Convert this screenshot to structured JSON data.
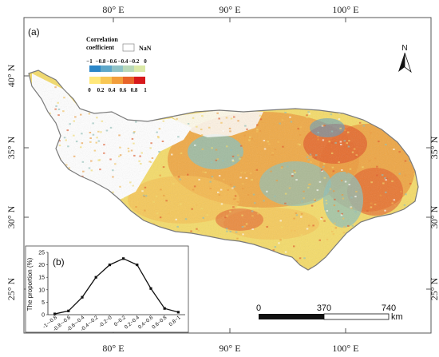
{
  "panel_a_label": "(a)",
  "panel_b_label": "(b)",
  "lon_labels_top": [
    "80° E",
    "90° E",
    "100° E"
  ],
  "lon_labels_bottom": [
    "80° E",
    "90° E",
    "100° E"
  ],
  "lat_labels": [
    "40° N",
    "35° N",
    "30° N",
    "25° N"
  ],
  "lat_labels_right": [
    "35° N",
    "30° N",
    "25° N"
  ],
  "legend": {
    "title_line1": "Correlation",
    "title_line2": "coefficient",
    "nan_label": "NaN",
    "neg_ticks": [
      "−1",
      "−0.8",
      "−0.6",
      "−0.4",
      "−0.2",
      "0"
    ],
    "pos_ticks": [
      "0",
      "0.2",
      "0.4",
      "0.6",
      "0.8",
      "1"
    ],
    "neg_colors": [
      "#2a86c8",
      "#5ea7c9",
      "#8fc2c6",
      "#b9d8b8",
      "#dbe9a8"
    ],
    "pos_colors": [
      "#ffe87a",
      "#f8c754",
      "#f29e3b",
      "#e8642a",
      "#d7191c"
    ]
  },
  "north_arrow_label": "N",
  "scalebar": {
    "ticks": [
      "0",
      "370",
      "740"
    ],
    "unit": "km"
  },
  "map_colors": {
    "yellow": "#f5dc6a",
    "orange": "#ee9a3c",
    "red_orange": "#e2592a",
    "light_orange": "#f6c055",
    "teal": "#8fc0b8",
    "blue": "#5b9fc4",
    "outline": "#7a7a7a"
  },
  "chart_data": {
    "type": "line",
    "title": "",
    "ylabel": "The proportion (%)",
    "xlabel": "",
    "categories": [
      "-1~-0.8",
      "-0.8~-0.6",
      "-0.6~-0.4",
      "-0.4~-0.2",
      "-0.2~0",
      "0~0.2",
      "0.2~0.4",
      "0.4~0.6",
      "0.6~0.8",
      "0.8~1"
    ],
    "values": [
      0.3,
      1.5,
      7,
      15,
      20,
      22.5,
      20,
      10.5,
      2.5,
      1
    ],
    "ylim": [
      0,
      25
    ],
    "yticks": [
      "0",
      "5",
      "10",
      "15",
      "20",
      "25"
    ]
  }
}
